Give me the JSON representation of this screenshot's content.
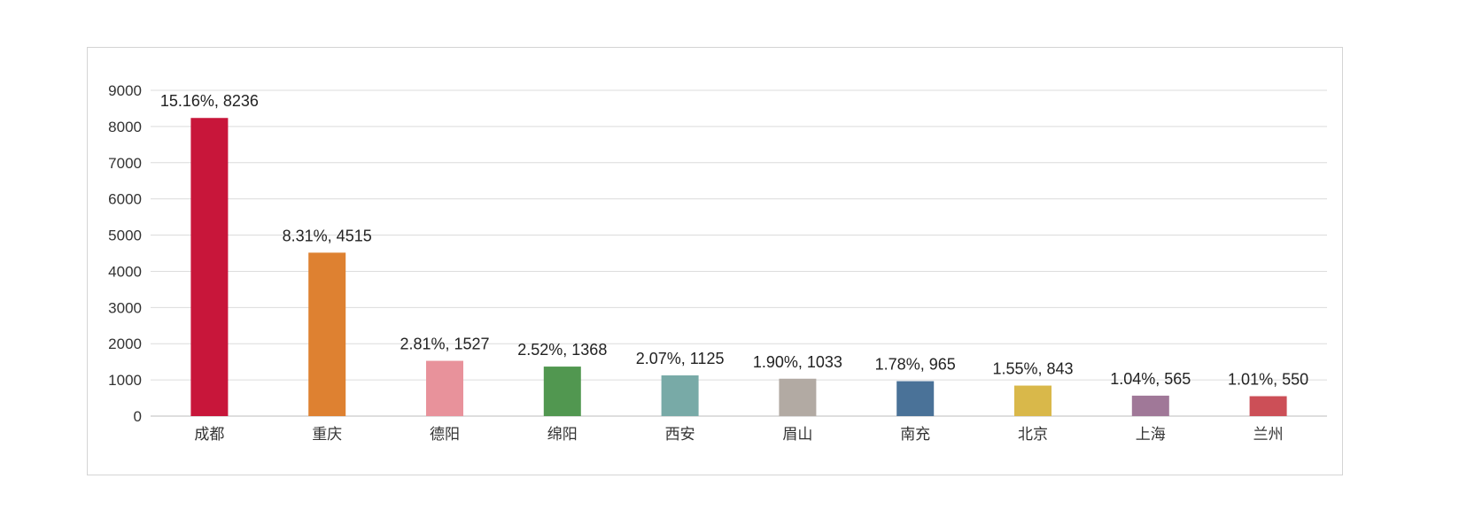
{
  "chart_data": {
    "type": "bar",
    "title": "",
    "xlabel": "",
    "ylabel": "",
    "ylim": [
      0,
      9000
    ],
    "yticks": [
      0,
      1000,
      2000,
      3000,
      4000,
      5000,
      6000,
      7000,
      8000,
      9000
    ],
    "grid": true,
    "legend": "none",
    "categories": [
      "成都",
      "重庆",
      "德阳",
      "绵阳",
      "西安",
      "眉山",
      "南充",
      "北京",
      "上海",
      "兰州"
    ],
    "values": [
      8236,
      4515,
      1527,
      1368,
      1125,
      1033,
      965,
      843,
      565,
      550
    ],
    "percents": [
      "15.16%",
      "8.31%",
      "2.81%",
      "2.52%",
      "2.07%",
      "1.90%",
      "1.78%",
      "1.55%",
      "1.04%",
      "1.01%"
    ],
    "data_labels": [
      "15.16%, 8236",
      "8.31%, 4515",
      "2.81%, 1527",
      "2.52%, 1368",
      "2.07%, 1125",
      "1.90%, 1033",
      "1.78%, 965",
      "1.55%, 843",
      "1.04%, 565",
      "1.01%, 550"
    ],
    "colors": [
      "#c8163a",
      "#de8131",
      "#e8929b",
      "#519750",
      "#78aaa7",
      "#b2aaa3",
      "#4a7298",
      "#d9b84a",
      "#a07898",
      "#cc4f57"
    ]
  }
}
